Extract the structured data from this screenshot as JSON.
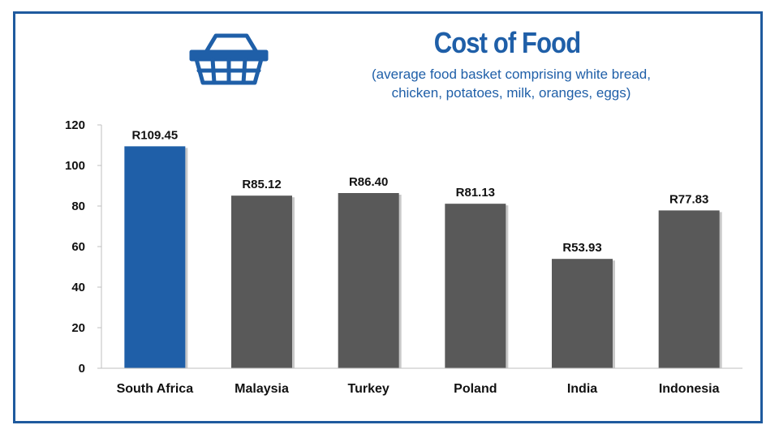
{
  "header": {
    "title": "Cost of Food",
    "subtitle_line1": "(average food basket comprising white bread,",
    "subtitle_line2": "chicken, potatoes, milk, oranges, eggs)",
    "icon": "shopping-basket-icon"
  },
  "colors": {
    "frame": "#1f5a9e",
    "title": "#1f5fa8",
    "highlight_bar": "#1f5fa8",
    "default_bar": "#595959"
  },
  "chart_data": {
    "type": "bar",
    "title": "Cost of Food",
    "subtitle": "(average food basket comprising white bread, chicken, potatoes, milk, oranges, eggs)",
    "categories": [
      "South Africa",
      "Malaysia",
      "Turkey",
      "Poland",
      "India",
      "Indonesia"
    ],
    "values": [
      109.45,
      85.12,
      86.4,
      81.13,
      53.93,
      77.83
    ],
    "data_labels": [
      "R109.45",
      "R85.12",
      "R86.40",
      "R81.13",
      "R53.93",
      "R77.83"
    ],
    "highlight_category": "South Africa",
    "yticks": [
      0,
      20,
      40,
      60,
      80,
      100,
      120
    ],
    "ylim": [
      0,
      120
    ],
    "xlabel": "",
    "ylabel": "",
    "grid": false,
    "legend": "none"
  }
}
